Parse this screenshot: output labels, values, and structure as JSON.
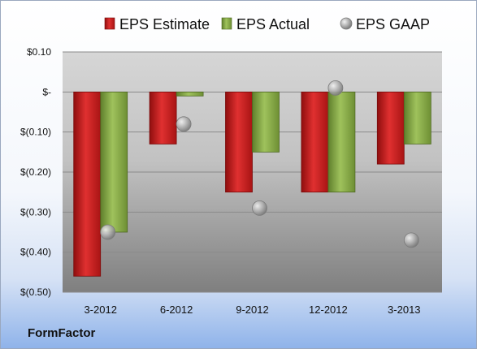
{
  "chart_data": {
    "type": "bar",
    "categories": [
      "3-2012",
      "6-2012",
      "9-2012",
      "12-2012",
      "3-2013"
    ],
    "series": [
      {
        "name": "EPS Estimate",
        "kind": "bar",
        "color": "#cc1f1f",
        "values": [
          -0.46,
          -0.13,
          -0.25,
          -0.25,
          -0.18
        ]
      },
      {
        "name": "EPS Actual",
        "kind": "bar",
        "color": "#8dae4f",
        "values": [
          -0.35,
          -0.01,
          -0.15,
          -0.25,
          -0.13
        ]
      },
      {
        "name": "EPS GAAP",
        "kind": "marker",
        "color": "#b3b3b3",
        "values": [
          -0.35,
          -0.08,
          -0.29,
          0.01,
          -0.37
        ]
      }
    ],
    "ylim": [
      -0.5,
      0.1
    ],
    "y_ticks": [
      0.1,
      0,
      -0.1,
      -0.2,
      -0.3,
      -0.4,
      -0.5
    ],
    "y_tick_labels": [
      "$0.10",
      "$-",
      "$(0.10)",
      "$(0.20)",
      "$(0.30)",
      "$(0.40)",
      "$(0.50)"
    ],
    "grid": true,
    "legend": "top"
  },
  "company": "FormFactor"
}
